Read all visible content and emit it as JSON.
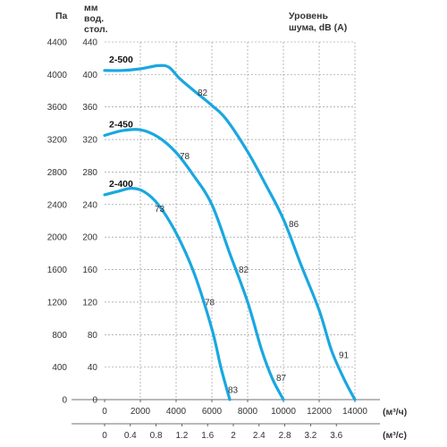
{
  "chart_data": {
    "type": "line",
    "axes": {
      "pa_label": "Па",
      "mm_label": [
        "мм",
        "вод.",
        "стол."
      ],
      "noise_label": [
        "Уровень",
        "шума, dB (A)"
      ],
      "x_m3h_unit": "(м³/ч)",
      "x_m3s_unit": "(м³/с)"
    },
    "x_m3h": {
      "range": [
        0,
        14000
      ],
      "ticks": [
        "0",
        "2000",
        "4000",
        "6000",
        "8000",
        "10000",
        "12000",
        "14000"
      ]
    },
    "x_m3s": {
      "ticks": [
        "0",
        "0.4",
        "0.8",
        "1.2",
        "1.6",
        "2",
        "2.4",
        "2.8",
        "3.2",
        "3.6"
      ]
    },
    "y_pa": {
      "range": [
        0,
        4400
      ],
      "ticks": [
        "0",
        "400",
        "800",
        "1200",
        "1600",
        "2000",
        "2400",
        "2800",
        "3200",
        "3600",
        "4000",
        "4400"
      ]
    },
    "y_mm": {
      "ticks": [
        "0",
        "40",
        "80",
        "120",
        "160",
        "200",
        "240",
        "280",
        "320",
        "360",
        "400",
        "440"
      ]
    },
    "grid": true,
    "series": [
      {
        "name": "2-500",
        "color": "#1aa7e0",
        "points": [
          [
            0,
            4050
          ],
          [
            1000,
            4050
          ],
          [
            2000,
            4070
          ],
          [
            3000,
            4110
          ],
          [
            3600,
            4090
          ],
          [
            4200,
            3950
          ],
          [
            5000,
            3800
          ],
          [
            6000,
            3620
          ],
          [
            6800,
            3450
          ],
          [
            8000,
            3050
          ],
          [
            9000,
            2650
          ],
          [
            10000,
            2220
          ],
          [
            11000,
            1650
          ],
          [
            12000,
            1100
          ],
          [
            12700,
            600
          ],
          [
            13400,
            250
          ],
          [
            14000,
            0
          ]
        ],
        "noise_labels": [
          {
            "x": 5200,
            "y": 3780,
            "text": "82"
          },
          {
            "x": 10300,
            "y": 2160,
            "text": "86"
          },
          {
            "x": 13100,
            "y": 550,
            "text": "91"
          }
        ]
      },
      {
        "name": "2-450",
        "color": "#1aa7e0",
        "points": [
          [
            0,
            3250
          ],
          [
            1000,
            3310
          ],
          [
            2000,
            3320
          ],
          [
            3000,
            3230
          ],
          [
            4000,
            3040
          ],
          [
            5000,
            2750
          ],
          [
            6000,
            2400
          ],
          [
            7000,
            1800
          ],
          [
            8000,
            1200
          ],
          [
            8800,
            600
          ],
          [
            9400,
            250
          ],
          [
            10000,
            0
          ]
        ],
        "noise_labels": [
          {
            "x": 4200,
            "y": 3000,
            "text": "78"
          },
          {
            "x": 7500,
            "y": 1600,
            "text": "82"
          },
          {
            "x": 9600,
            "y": 270,
            "text": "87"
          }
        ]
      },
      {
        "name": "2-400",
        "color": "#1aa7e0",
        "points": [
          [
            0,
            2520
          ],
          [
            700,
            2560
          ],
          [
            1500,
            2600
          ],
          [
            2200,
            2560
          ],
          [
            3000,
            2400
          ],
          [
            4000,
            2050
          ],
          [
            5000,
            1560
          ],
          [
            6000,
            870
          ],
          [
            6500,
            400
          ],
          [
            7000,
            0
          ]
        ],
        "noise_labels": [
          {
            "x": 2800,
            "y": 2350,
            "text": "73"
          },
          {
            "x": 5600,
            "y": 1200,
            "text": "78"
          },
          {
            "x": 6900,
            "y": 120,
            "text": "83"
          }
        ]
      }
    ]
  }
}
